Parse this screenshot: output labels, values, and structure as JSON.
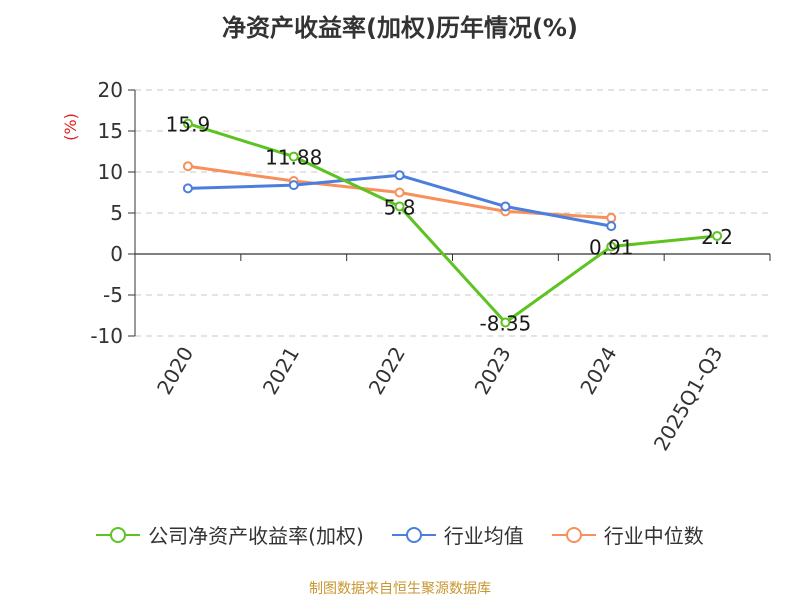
{
  "page_title": "净资产收益率(加权)历年情况(%)",
  "source_note": "制图数据来自恒生聚源数据库",
  "chart_data": {
    "type": "line",
    "title": "净资产收益率(加权)历年情况(%)",
    "ylabel": "(%)",
    "xlabel": "",
    "categories": [
      "2020",
      "2021",
      "2022",
      "2023",
      "2024",
      "2025Q1-Q3"
    ],
    "ylim": [
      -10,
      20
    ],
    "yticks": [
      20,
      15,
      10,
      5,
      0,
      -5,
      -10
    ],
    "grid": true,
    "legend_position": "bottom",
    "series": [
      {
        "name": "公司净资产收益率(加权)",
        "color": "#5cc320",
        "values": [
          15.9,
          11.88,
          5.8,
          -8.35,
          0.91,
          2.2
        ],
        "labels": [
          "15.9",
          "11.88",
          "5.8",
          "-8.35",
          "0.91",
          "2.2"
        ]
      },
      {
        "name": "行业均值",
        "color": "#4b7fdb",
        "values": [
          8.0,
          8.4,
          9.6,
          5.8,
          3.4,
          null
        ]
      },
      {
        "name": "行业中位数",
        "color": "#f7905a",
        "values": [
          10.7,
          8.9,
          7.5,
          5.2,
          4.4,
          null
        ]
      }
    ]
  }
}
